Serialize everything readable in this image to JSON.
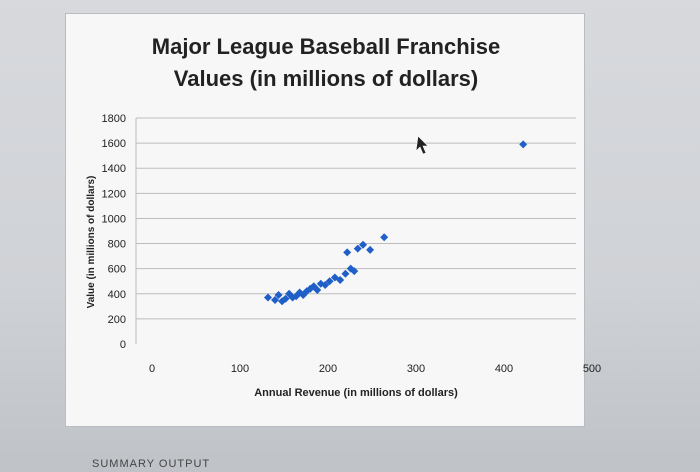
{
  "chart_data": {
    "type": "scatter",
    "title_lines": [
      "Major League Baseball Franchise",
      "Values (in millions of dollars)"
    ],
    "xlabel": "Annual Revenue (in millions of dollars)",
    "ylabel": "Value (in millions of dollars)",
    "xlim": [
      0,
      500
    ],
    "ylim": [
      0,
      1800
    ],
    "x_ticks": [
      0,
      100,
      200,
      300,
      400,
      500
    ],
    "y_ticks": [
      0,
      200,
      400,
      600,
      800,
      1000,
      1200,
      1400,
      1600,
      1800
    ],
    "grid": "horizontal",
    "marker_color": "#1f5fc7",
    "points": [
      {
        "x": 150,
        "y": 370
      },
      {
        "x": 158,
        "y": 350
      },
      {
        "x": 162,
        "y": 390
      },
      {
        "x": 166,
        "y": 340
      },
      {
        "x": 170,
        "y": 360
      },
      {
        "x": 174,
        "y": 400
      },
      {
        "x": 178,
        "y": 370
      },
      {
        "x": 182,
        "y": 380
      },
      {
        "x": 186,
        "y": 410
      },
      {
        "x": 190,
        "y": 390
      },
      {
        "x": 194,
        "y": 420
      },
      {
        "x": 198,
        "y": 440
      },
      {
        "x": 202,
        "y": 460
      },
      {
        "x": 206,
        "y": 430
      },
      {
        "x": 210,
        "y": 480
      },
      {
        "x": 215,
        "y": 470
      },
      {
        "x": 220,
        "y": 500
      },
      {
        "x": 226,
        "y": 530
      },
      {
        "x": 232,
        "y": 510
      },
      {
        "x": 238,
        "y": 560
      },
      {
        "x": 244,
        "y": 600
      },
      {
        "x": 248,
        "y": 580
      },
      {
        "x": 240,
        "y": 730
      },
      {
        "x": 252,
        "y": 760
      },
      {
        "x": 258,
        "y": 790
      },
      {
        "x": 266,
        "y": 750
      },
      {
        "x": 282,
        "y": 850
      },
      {
        "x": 440,
        "y": 1590
      }
    ]
  },
  "footer_text": "SUMMARY OUTPUT"
}
